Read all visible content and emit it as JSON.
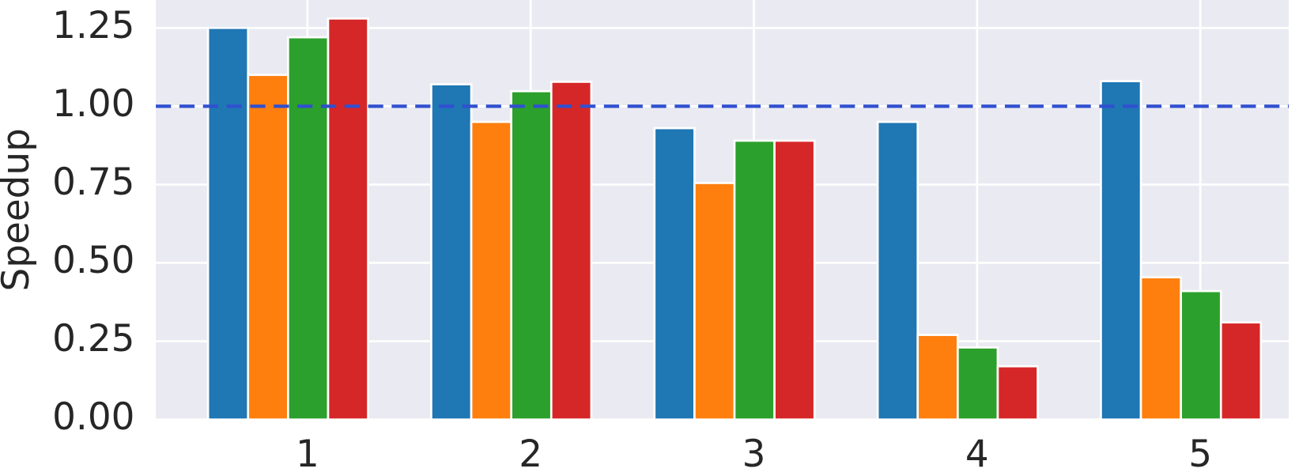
{
  "chart_data": {
    "type": "bar",
    "y_label": "Speedup",
    "categories": [
      "1",
      "2",
      "3",
      "4",
      "5"
    ],
    "series": [
      {
        "color": "#1f77b4",
        "values": [
          1.25,
          1.07,
          0.93,
          0.95,
          1.08
        ]
      },
      {
        "color": "#ff7f0e",
        "values": [
          1.1,
          0.95,
          0.755,
          0.27,
          0.454
        ]
      },
      {
        "color": "#2ca02c",
        "values": [
          1.22,
          1.048,
          0.89,
          0.23,
          0.41
        ]
      },
      {
        "color": "#d62728",
        "values": [
          1.28,
          1.078,
          0.89,
          0.17,
          0.31
        ]
      }
    ],
    "ylim": [
      0,
      1.339
    ],
    "yticks": [
      {
        "value": 0,
        "label": "0.00"
      },
      {
        "value": 0.25,
        "label": "0.25"
      },
      {
        "value": 0.5,
        "label": "0.50"
      },
      {
        "value": 0.75,
        "label": "0.75"
      },
      {
        "value": 1,
        "label": "1.00"
      },
      {
        "value": 1.25,
        "label": "1.25"
      }
    ],
    "reference_line": {
      "value": 1,
      "color": "#3050d0"
    },
    "grid": true,
    "background": "#eaeaf2"
  }
}
